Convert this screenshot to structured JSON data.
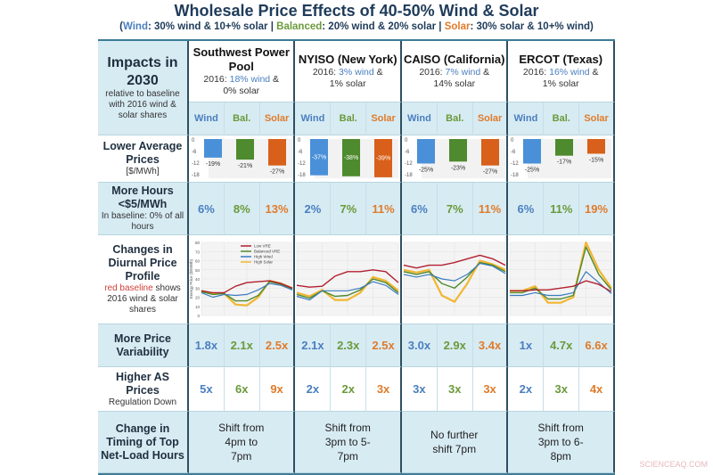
{
  "title": "Wholesale Price Effects of 40-50% Wind & Solar",
  "subtitle": {
    "open": "(",
    "wind": "Wind",
    "wind_desc": ": 30% wind & 10+% solar  |  ",
    "bal": "Balanced",
    "bal_desc": ": 20% wind & 20% solar  |  ",
    "solar": "Solar",
    "solar_desc": ": 30% solar & 10+% wind)"
  },
  "colors": {
    "wind": "#4a90d9",
    "balanced": "#4e8a2e",
    "solar": "#d8601a",
    "low_vre": "#b22030",
    "high_solar": "#f2b632",
    "border": "#2f4f60",
    "light_blue": "#d7ebf3"
  },
  "row_labels": {
    "impacts": {
      "title": "Impacts in 2030",
      "note": "relative to baseline with 2016 wind & solar shares"
    },
    "prices": {
      "title": "Lower Average Prices",
      "note": "[$/MWh]"
    },
    "hours": {
      "title": "More Hours <$5/MWh",
      "note": "In baseline: 0% of all hours"
    },
    "diurnal": {
      "title": "Changes in Diurnal Price Profile",
      "red": "red baseline",
      "note1": " shows 2016 wind & solar shares"
    },
    "variability": {
      "title": "More Price Variability"
    },
    "as": {
      "title": "Higher AS Prices",
      "note": "Regulation Down"
    },
    "timing": {
      "title": "Change in Timing of Top Net-Load Hours"
    }
  },
  "scenario_labels": [
    "Wind",
    "Bal.",
    "Solar"
  ],
  "bar_axis_ticks": [
    "0",
    "-6",
    "-12",
    "-18"
  ],
  "chart_data": {
    "type": "line",
    "ylabel": "Energy Price ($/MWh)",
    "yticks": [
      "0",
      "10",
      "20",
      "30",
      "40",
      "50",
      "60",
      "70",
      "80"
    ],
    "ylim": [
      0,
      80
    ],
    "legend": [
      "Low VRE",
      "Balanced VRE",
      "High Wind",
      "High Solar"
    ],
    "legend_placement": "top",
    "x_hours": [
      0,
      3,
      6,
      9,
      12,
      15,
      18,
      21,
      24
    ]
  },
  "regions": [
    {
      "name": "Southwest Power Pool",
      "yr": "2016: ",
      "wind": "18% wind",
      "amp": " &",
      "solar": "0% solar",
      "price_changes": [
        "-19%",
        "-21%",
        "-27%"
      ],
      "price_values": [
        -19,
        -21,
        -27
      ],
      "hours": [
        "6%",
        "8%",
        "13%"
      ],
      "variability": [
        "1.8x",
        "2.1x",
        "2.5x"
      ],
      "as": [
        "5x",
        "6x",
        "9x"
      ],
      "timing": "Shift from 4pm to 7pm",
      "profiles": {
        "low": [
          27,
          25,
          25,
          32,
          36,
          37,
          38,
          35,
          30
        ],
        "bal": [
          26,
          23,
          24,
          16,
          16,
          22,
          37,
          34,
          29
        ],
        "wind": [
          25,
          20,
          23,
          22,
          23,
          28,
          35,
          33,
          28
        ],
        "solar": [
          27,
          24,
          24,
          12,
          11,
          20,
          38,
          35,
          30
        ]
      }
    },
    {
      "name": "NYISO (New York)",
      "yr": "2016: ",
      "wind": "3% wind",
      "amp": " &",
      "solar": "1% solar",
      "price_changes": [
        "-37%",
        "-38%",
        "-39%"
      ],
      "price_values": [
        -37,
        -38,
        -39
      ],
      "hours": [
        "2%",
        "7%",
        "11%"
      ],
      "variability": [
        "2.1x",
        "2.3x",
        "2.5x"
      ],
      "as": [
        "2x",
        "2x",
        "3x"
      ],
      "timing": "Shift from 3pm to 5-7pm",
      "profiles": {
        "low": [
          33,
          31,
          32,
          43,
          48,
          48,
          50,
          48,
          36
        ],
        "bal": [
          23,
          19,
          27,
          21,
          22,
          28,
          40,
          36,
          25
        ],
        "wind": [
          21,
          17,
          27,
          27,
          27,
          30,
          37,
          33,
          23
        ],
        "solar": [
          25,
          21,
          28,
          17,
          17,
          25,
          42,
          38,
          27
        ]
      }
    },
    {
      "name": "CAISO (California)",
      "yr": "2016: ",
      "wind": "7% wind",
      "amp": " &",
      "solar": "14% solar",
      "price_changes": [
        "-25%",
        "-23%",
        "-27%"
      ],
      "price_values": [
        -25,
        -23,
        -27
      ],
      "hours": [
        "6%",
        "7%",
        "11%"
      ],
      "variability": [
        "3.0x",
        "2.9x",
        "3.4x"
      ],
      "as": [
        "3x",
        "3x",
        "3x"
      ],
      "timing": "No further shift 7pm",
      "profiles": {
        "low": [
          55,
          52,
          55,
          55,
          58,
          62,
          66,
          62,
          55
        ],
        "bal": [
          48,
          45,
          48,
          35,
          30,
          42,
          58,
          55,
          48
        ],
        "wind": [
          45,
          42,
          45,
          40,
          38,
          45,
          57,
          54,
          46
        ],
        "solar": [
          50,
          47,
          50,
          22,
          15,
          35,
          60,
          56,
          50
        ]
      }
    },
    {
      "name": "ERCOT (Texas)",
      "yr": "2016: ",
      "wind": "16% wind",
      "amp": " &",
      "solar": "1% solar",
      "price_changes": [
        "-25%",
        "-17%",
        "-15%"
      ],
      "price_values": [
        -25,
        -17,
        -15
      ],
      "hours": [
        "6%",
        "11%",
        "19%"
      ],
      "variability": [
        "1x",
        "4.7x",
        "6.6x"
      ],
      "as": [
        "2x",
        "3x",
        "4x"
      ],
      "timing": "Shift from 3pm to 6-8pm",
      "profiles": {
        "low": [
          27,
          27,
          28,
          28,
          30,
          32,
          38,
          34,
          26
        ],
        "bal": [
          25,
          25,
          30,
          18,
          18,
          22,
          75,
          45,
          28
        ],
        "wind": [
          22,
          22,
          25,
          22,
          22,
          25,
          48,
          36,
          24
        ],
        "solar": [
          27,
          27,
          32,
          14,
          14,
          20,
          80,
          50,
          30
        ]
      }
    }
  ],
  "watermark": "SCIENCEAQ.COM"
}
